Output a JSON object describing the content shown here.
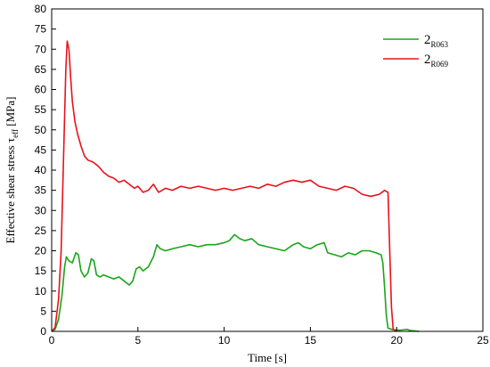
{
  "chart_data": {
    "type": "line",
    "title": "",
    "xlabel": "Time [s]",
    "ylabel": {
      "main": "Effective shear stress τ",
      "subscript": "eff",
      "unit": " [MPa]"
    },
    "xlim": [
      0,
      25
    ],
    "ylim": [
      0,
      80
    ],
    "xticks": [
      0,
      5,
      10,
      15,
      20,
      25
    ],
    "yticks": [
      0,
      5,
      10,
      15,
      20,
      25,
      30,
      35,
      40,
      45,
      50,
      55,
      60,
      65,
      70,
      75,
      80
    ],
    "grid": false,
    "legend_position": "top-right",
    "series": [
      {
        "name": "2R063",
        "legend_main": "2",
        "legend_sub": "R063",
        "color": "#1aa51a",
        "points": [
          [
            0.0,
            0.0
          ],
          [
            0.2,
            0.5
          ],
          [
            0.4,
            3.0
          ],
          [
            0.6,
            9.0
          ],
          [
            0.75,
            16.0
          ],
          [
            0.85,
            18.5
          ],
          [
            1.0,
            17.5
          ],
          [
            1.2,
            17.0
          ],
          [
            1.4,
            19.5
          ],
          [
            1.55,
            19.0
          ],
          [
            1.7,
            15.0
          ],
          [
            1.9,
            13.5
          ],
          [
            2.1,
            14.5
          ],
          [
            2.3,
            18.0
          ],
          [
            2.45,
            17.5
          ],
          [
            2.6,
            14.0
          ],
          [
            2.8,
            13.5
          ],
          [
            3.0,
            14.0
          ],
          [
            3.3,
            13.5
          ],
          [
            3.6,
            13.0
          ],
          [
            3.9,
            13.5
          ],
          [
            4.2,
            12.5
          ],
          [
            4.5,
            11.5
          ],
          [
            4.7,
            12.5
          ],
          [
            4.9,
            15.5
          ],
          [
            5.1,
            16.0
          ],
          [
            5.3,
            15.0
          ],
          [
            5.6,
            16.0
          ],
          [
            5.9,
            18.5
          ],
          [
            6.1,
            21.5
          ],
          [
            6.3,
            20.5
          ],
          [
            6.6,
            20.0
          ],
          [
            7.0,
            20.5
          ],
          [
            7.5,
            21.0
          ],
          [
            8.0,
            21.5
          ],
          [
            8.5,
            21.0
          ],
          [
            9.0,
            21.5
          ],
          [
            9.5,
            21.5
          ],
          [
            10.0,
            22.0
          ],
          [
            10.3,
            22.5
          ],
          [
            10.6,
            24.0
          ],
          [
            10.9,
            23.0
          ],
          [
            11.2,
            22.5
          ],
          [
            11.6,
            23.0
          ],
          [
            12.0,
            21.5
          ],
          [
            12.5,
            21.0
          ],
          [
            13.0,
            20.5
          ],
          [
            13.5,
            20.0
          ],
          [
            14.0,
            21.5
          ],
          [
            14.3,
            22.0
          ],
          [
            14.6,
            21.0
          ],
          [
            15.0,
            20.5
          ],
          [
            15.4,
            21.5
          ],
          [
            15.8,
            22.0
          ],
          [
            16.0,
            19.5
          ],
          [
            16.4,
            19.0
          ],
          [
            16.8,
            18.5
          ],
          [
            17.2,
            19.5
          ],
          [
            17.6,
            19.0
          ],
          [
            18.0,
            20.0
          ],
          [
            18.4,
            20.0
          ],
          [
            18.8,
            19.5
          ],
          [
            19.1,
            19.0
          ],
          [
            19.2,
            17.0
          ],
          [
            19.3,
            11.0
          ],
          [
            19.4,
            4.0
          ],
          [
            19.5,
            0.8
          ],
          [
            19.8,
            0.4
          ],
          [
            20.2,
            0.3
          ],
          [
            20.6,
            0.5
          ],
          [
            20.8,
            0.2
          ],
          [
            21.3,
            0.0
          ]
        ]
      },
      {
        "name": "2R069",
        "legend_main": "2",
        "legend_sub": "R069",
        "color": "#e8121c",
        "points": [
          [
            0.0,
            0.0
          ],
          [
            0.2,
            1.0
          ],
          [
            0.4,
            8.0
          ],
          [
            0.55,
            20.0
          ],
          [
            0.7,
            45.0
          ],
          [
            0.82,
            65.0
          ],
          [
            0.9,
            72.0
          ],
          [
            1.0,
            70.0
          ],
          [
            1.1,
            63.0
          ],
          [
            1.2,
            57.0
          ],
          [
            1.35,
            52.0
          ],
          [
            1.5,
            49.0
          ],
          [
            1.7,
            46.0
          ],
          [
            1.9,
            43.5
          ],
          [
            2.1,
            42.5
          ],
          [
            2.4,
            42.0
          ],
          [
            2.7,
            41.0
          ],
          [
            3.0,
            39.5
          ],
          [
            3.3,
            38.5
          ],
          [
            3.6,
            38.0
          ],
          [
            3.9,
            37.0
          ],
          [
            4.2,
            37.5
          ],
          [
            4.5,
            36.5
          ],
          [
            4.8,
            35.5
          ],
          [
            5.0,
            36.0
          ],
          [
            5.3,
            34.5
          ],
          [
            5.6,
            35.0
          ],
          [
            5.9,
            36.5
          ],
          [
            6.2,
            34.5
          ],
          [
            6.6,
            35.5
          ],
          [
            7.0,
            35.0
          ],
          [
            7.5,
            36.0
          ],
          [
            8.0,
            35.5
          ],
          [
            8.5,
            36.0
          ],
          [
            9.0,
            35.5
          ],
          [
            9.5,
            35.0
          ],
          [
            10.0,
            35.5
          ],
          [
            10.5,
            35.0
          ],
          [
            11.0,
            35.5
          ],
          [
            11.5,
            36.0
          ],
          [
            12.0,
            35.5
          ],
          [
            12.5,
            36.5
          ],
          [
            13.0,
            36.0
          ],
          [
            13.5,
            37.0
          ],
          [
            14.0,
            37.5
          ],
          [
            14.5,
            37.0
          ],
          [
            15.0,
            37.5
          ],
          [
            15.5,
            36.0
          ],
          [
            16.0,
            35.5
          ],
          [
            16.5,
            35.0
          ],
          [
            17.0,
            36.0
          ],
          [
            17.5,
            35.5
          ],
          [
            18.0,
            34.0
          ],
          [
            18.5,
            33.5
          ],
          [
            19.0,
            34.0
          ],
          [
            19.3,
            35.0
          ],
          [
            19.5,
            34.5
          ],
          [
            19.6,
            20.0
          ],
          [
            19.7,
            6.0
          ],
          [
            19.8,
            0.5
          ],
          [
            20.0,
            0.0
          ]
        ]
      }
    ]
  }
}
